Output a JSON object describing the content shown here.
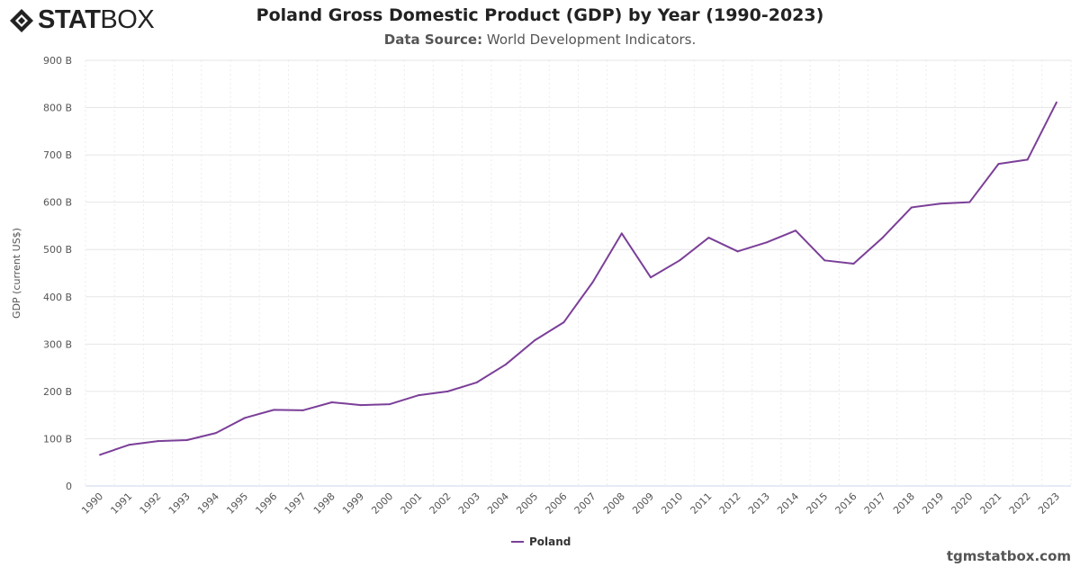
{
  "logo": {
    "text_bold": "STAT",
    "text_light": "BOX"
  },
  "header": {
    "title": "Poland Gross Domestic Product (GDP) by Year (1990-2023)",
    "source_label": "Data Source:",
    "source_value": "World Development Indicators."
  },
  "credit": "tgmstatbox.com",
  "colors": {
    "line": "#7b3f98",
    "grid": "#e6e6e6"
  },
  "chart_data": {
    "type": "line",
    "title": "Poland Gross Domestic Product (GDP) by Year (1990-2023)",
    "ylabel": "GDP (current US$)",
    "ylim": [
      0,
      900
    ],
    "yticks": [
      0,
      100,
      200,
      300,
      400,
      500,
      600,
      700,
      800,
      900
    ],
    "ytick_labels": [
      "0",
      "100 B",
      "200 B",
      "300 B",
      "400 B",
      "500 B",
      "600 B",
      "700 B",
      "800 B",
      "900 B"
    ],
    "unit": "billion US$",
    "grid": true,
    "legend_position": "bottom",
    "x": [
      "1990",
      "1991",
      "1992",
      "1993",
      "1994",
      "1995",
      "1996",
      "1997",
      "1998",
      "1999",
      "2000",
      "2001",
      "2002",
      "2003",
      "2004",
      "2005",
      "2006",
      "2007",
      "2008",
      "2009",
      "2010",
      "2011",
      "2012",
      "2013",
      "2014",
      "2015",
      "2016",
      "2017",
      "2018",
      "2019",
      "2020",
      "2021",
      "2022",
      "2023"
    ],
    "series": [
      {
        "name": "Poland",
        "values": [
          66,
          87,
          95,
          97,
          112,
          144,
          161,
          160,
          177,
          171,
          173,
          192,
          200,
          219,
          257,
          308,
          346,
          431,
          534,
          441,
          477,
          525,
          496,
          515,
          540,
          477,
          470,
          525,
          589,
          597,
          600,
          681,
          690,
          811
        ]
      }
    ]
  }
}
